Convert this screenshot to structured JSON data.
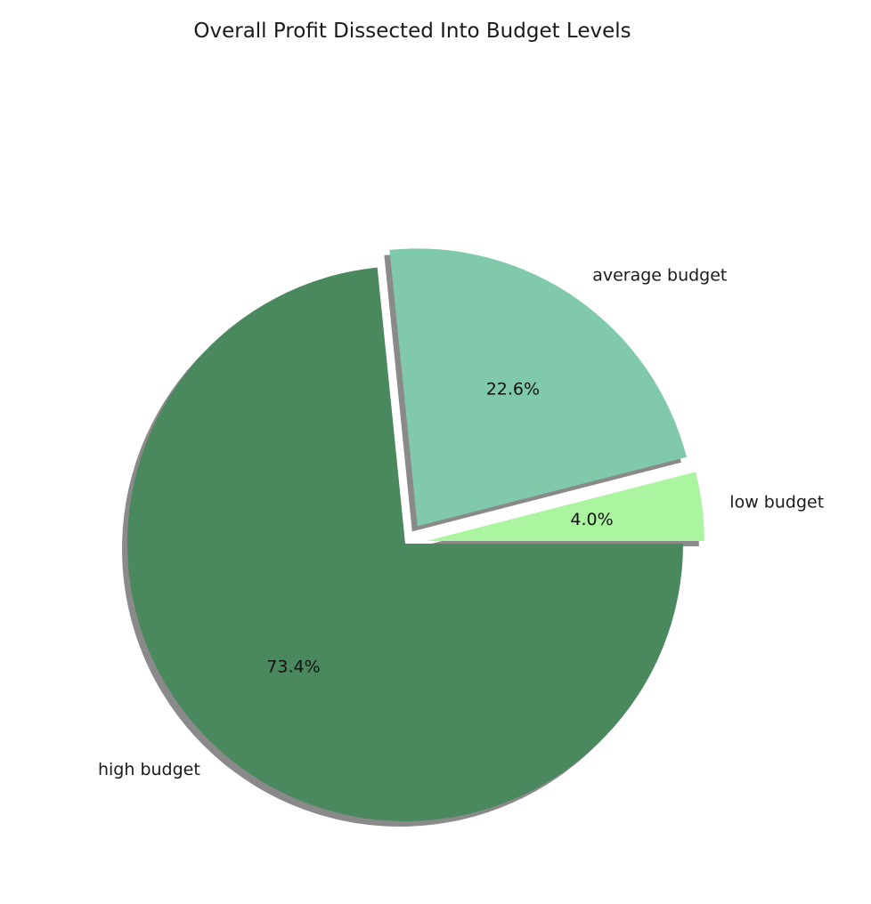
{
  "chart_data": {
    "type": "pie",
    "title": "Overall Profit Dissected Into Budget Levels",
    "slices": [
      {
        "label": "low budget",
        "value": 4.0,
        "pct_label": "4.0%",
        "color": "#abf5a0",
        "exploded": true
      },
      {
        "label": "average budget",
        "value": 22.6,
        "pct_label": "22.6%",
        "color": "#80c9aa",
        "exploded": true
      },
      {
        "label": "high budget",
        "value": 73.4,
        "pct_label": "73.4%",
        "color": "#4a885e",
        "exploded": false
      }
    ],
    "shadow": true,
    "counterclock": true,
    "legend": "none"
  }
}
